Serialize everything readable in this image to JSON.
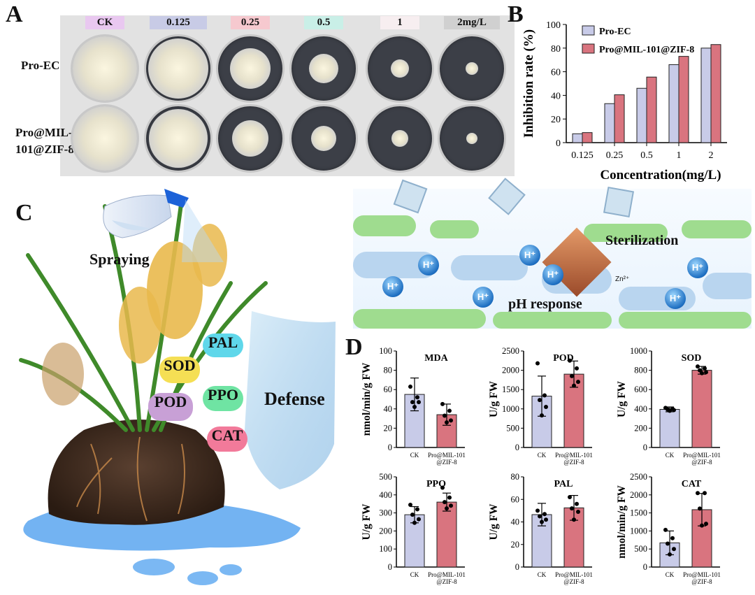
{
  "panelA": {
    "letter": "A",
    "concentrations": [
      "CK",
      "0.125",
      "0.25",
      "0.5",
      "1",
      "2mg/L"
    ],
    "concentration_colors": [
      "#e9c8f0",
      "#c8cbe6",
      "#f6c9cf",
      "#c9efe7",
      "#f7eef0",
      "#d0d0d0"
    ],
    "row_labels": [
      "Pro-EC",
      "Pro@MIL-\n101@ZIF-8"
    ]
  },
  "panelB": {
    "letter": "B"
  },
  "panelC": {
    "letter": "C",
    "spraying": "Spraying",
    "defense": "Defense",
    "sterilization": "Sterilization",
    "ph_response": "pH response",
    "proton": "H⁺",
    "zinc": "Zn²⁺",
    "enzymes": [
      "PAL",
      "SOD",
      "POD",
      "PPO",
      "CAT"
    ]
  },
  "panelD": {
    "letter": "D"
  },
  "chart_data": [
    {
      "type": "bar",
      "categories": [
        "0.125",
        "0.25",
        "0.5",
        "1",
        "2"
      ],
      "series": [
        {
          "name": "Pro-EC",
          "values": [
            7.5,
            33,
            46,
            66,
            80
          ],
          "color": "#c8cbe8"
        },
        {
          "name": "Pro@MIL-101@ZIF-8",
          "values": [
            8.5,
            40.5,
            55.5,
            73,
            83
          ],
          "color": "#d9747f"
        }
      ],
      "xlabel": "Concentration(mg/L)",
      "ylabel": "Inhibition rate (%)",
      "ylim": [
        0,
        100
      ],
      "yticks": [
        0,
        20,
        40,
        60,
        80,
        100
      ],
      "legend": "top-left"
    },
    {
      "type": "bar",
      "title": "MDA",
      "ylabel": "nmol/min/g FW",
      "categories": [
        "CK",
        "Pro@MIL-101\n@ZIF-8"
      ],
      "values": [
        55,
        34
      ],
      "errors": [
        17,
        11
      ],
      "points": [
        [
          63,
          52,
          47,
          47,
          42
        ],
        [
          45,
          38,
          33,
          28,
          26
        ]
      ],
      "ylim": [
        0,
        100
      ],
      "yticks": [
        0,
        20,
        40,
        60,
        80,
        100
      ]
    },
    {
      "type": "bar",
      "title": "POD",
      "ylabel": "U/g FW",
      "categories": [
        "CK",
        "Pro@MIL-101\n@ZIF-8"
      ],
      "values": [
        1330,
        1900
      ],
      "errors": [
        520,
        340
      ],
      "points": [
        [
          2180,
          1350,
          1230,
          1050,
          830
        ],
        [
          2250,
          2050,
          1850,
          1700,
          1600
        ]
      ],
      "ylim": [
        0,
        2500
      ],
      "yticks": [
        0,
        500,
        1000,
        1500,
        2000,
        2500
      ]
    },
    {
      "type": "bar",
      "title": "SOD",
      "ylabel": "U/g FW",
      "categories": [
        "CK",
        "Pro@MIL-101\n@ZIF-8"
      ],
      "values": [
        395,
        800
      ],
      "errors": [
        25,
        40
      ],
      "points": [
        [
          410,
          400,
          395,
          388,
          380
        ],
        [
          840,
          820,
          800,
          780,
          770
        ]
      ],
      "ylim": [
        0,
        1000
      ],
      "yticks": [
        0,
        200,
        400,
        600,
        800,
        1000
      ]
    },
    {
      "type": "bar",
      "title": "PPO",
      "ylabel": "U/g FW",
      "categories": [
        "CK",
        "Pro@MIL-101\n@ZIF-8"
      ],
      "values": [
        290,
        360
      ],
      "errors": [
        45,
        50
      ],
      "points": [
        [
          345,
          320,
          290,
          265,
          245
        ],
        [
          440,
          385,
          360,
          340,
          325
        ]
      ],
      "ylim": [
        0,
        500
      ],
      "yticks": [
        0,
        100,
        200,
        300,
        400,
        500
      ]
    },
    {
      "type": "bar",
      "title": "PAL",
      "ylabel": "U/g FW",
      "categories": [
        "CK",
        "Pro@MIL-101\n@ZIF-8"
      ],
      "values": [
        46.5,
        52.5
      ],
      "errors": [
        10,
        11
      ],
      "points": [
        [
          50,
          47,
          45,
          42,
          40
        ],
        [
          62,
          56,
          52,
          49,
          42
        ]
      ],
      "ylim": [
        0,
        80
      ],
      "yticks": [
        0,
        20,
        40,
        60,
        80
      ]
    },
    {
      "type": "bar",
      "title": "CAT",
      "ylabel": "nmol/min/g FW",
      "categories": [
        "CK",
        "Pro@MIL-101\n@ZIF-8"
      ],
      "values": [
        670,
        1590
      ],
      "errors": [
        330,
        450
      ],
      "points": [
        [
          1030,
          800,
          650,
          500,
          350
        ],
        [
          2050,
          2050,
          1620,
          1200,
          1150
        ]
      ],
      "ylim": [
        0,
        2500
      ],
      "yticks": [
        0,
        500,
        1000,
        1500,
        2000,
        2500
      ]
    }
  ]
}
